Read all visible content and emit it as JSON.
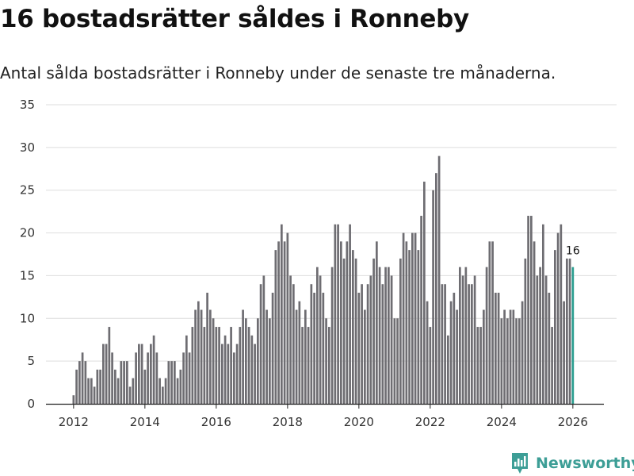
{
  "title": "16 bostadsrätter såldes i Ronneby",
  "subtitle": "Antal sålda bostadsrätter i Ronneby under de senaste tre månaderna.",
  "brand": {
    "name": "Newsworthy",
    "color": "#3d9e96"
  },
  "chart_data": {
    "type": "bar",
    "title": "16 bostadsrätter såldes i Ronneby",
    "xlabel": "",
    "ylabel": "",
    "ylim": [
      0,
      35
    ],
    "yticks": [
      0,
      5,
      10,
      15,
      20,
      25,
      30,
      35
    ],
    "ytick_labels": [
      "0",
      "5",
      "10",
      "15",
      "20",
      "25",
      "30",
      "35"
    ],
    "xticks": [
      "2012",
      "2014",
      "2016",
      "2018",
      "2020",
      "2022",
      "2024",
      "2026"
    ],
    "xstart": [
      2012,
      1
    ],
    "bar_color": "#6e6d72",
    "highlight_color": "#2a9d8f",
    "highlight_label": "16",
    "values": [
      1,
      4,
      5,
      6,
      5,
      3,
      3,
      2,
      4,
      4,
      7,
      7,
      9,
      6,
      4,
      3,
      5,
      5,
      5,
      2,
      3,
      6,
      7,
      7,
      4,
      6,
      7,
      8,
      6,
      3,
      2,
      3,
      5,
      5,
      5,
      3,
      4,
      6,
      8,
      6,
      9,
      11,
      12,
      11,
      9,
      13,
      11,
      10,
      9,
      9,
      7,
      8,
      7,
      9,
      6,
      7,
      9,
      11,
      10,
      9,
      8,
      7,
      10,
      14,
      15,
      11,
      10,
      13,
      18,
      19,
      21,
      19,
      20,
      15,
      14,
      11,
      12,
      9,
      11,
      9,
      14,
      13,
      16,
      15,
      13,
      10,
      9,
      16,
      21,
      21,
      19,
      17,
      19,
      21,
      18,
      17,
      13,
      14,
      11,
      14,
      15,
      17,
      19,
      16,
      14,
      16,
      16,
      15,
      10,
      10,
      17,
      20,
      19,
      18,
      20,
      20,
      18,
      22,
      26,
      12,
      9,
      25,
      27,
      29,
      14,
      14,
      8,
      12,
      13,
      11,
      16,
      15,
      16,
      14,
      14,
      15,
      9,
      9,
      11,
      16,
      19,
      19,
      13,
      13,
      10,
      11,
      10,
      11,
      11,
      10,
      10,
      12,
      17,
      22,
      22,
      19,
      15,
      16,
      21,
      15,
      13,
      9,
      18,
      20,
      21,
      12,
      17,
      17,
      16
    ]
  }
}
